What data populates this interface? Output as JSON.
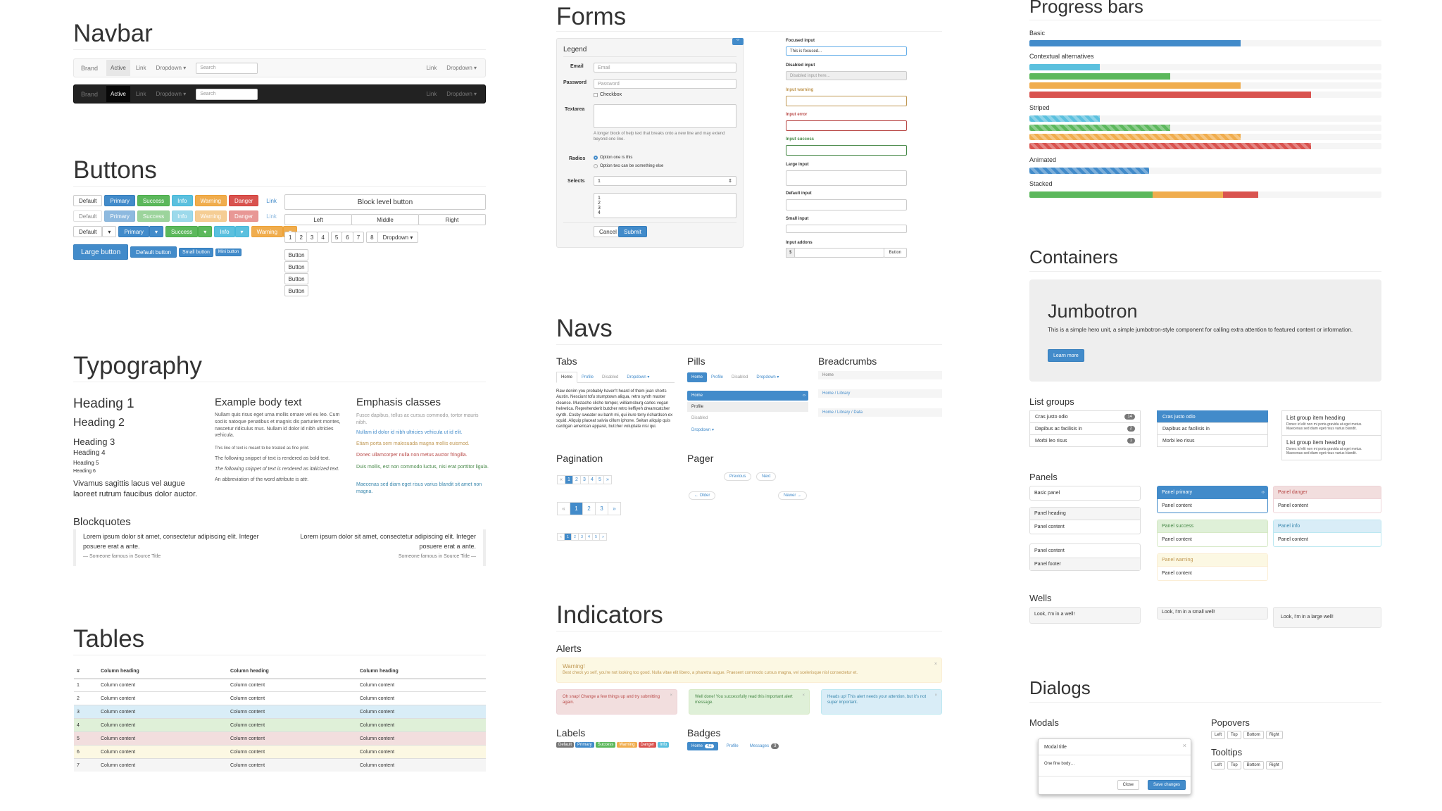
{
  "sections": {
    "navbar": "Navbar",
    "buttons": "Buttons",
    "typography": "Typography",
    "tables": "Tables",
    "forms": "Forms",
    "navs": "Navs",
    "indicators": "Indicators",
    "progress": "Progress bars",
    "containers": "Containers",
    "dialogs": "Dialogs"
  },
  "navbar": {
    "brand": "Brand",
    "active": "Active",
    "link": "Link",
    "dropdown": "Dropdown ▾",
    "search": "Search"
  },
  "buttons": {
    "row1": [
      "Default",
      "Primary",
      "Success",
      "Info",
      "Warning",
      "Danger",
      "Link"
    ],
    "large": "Large button",
    "default_btn": "Default button",
    "small": "Small button",
    "mini": "Mini button",
    "block": "Block level button",
    "group": [
      "Left",
      "Middle",
      "Right"
    ],
    "pages": [
      "1",
      "2",
      "3",
      "4",
      "5",
      "6",
      "7",
      "8"
    ],
    "dropdown": "Dropdown ▾",
    "vertical": [
      "Button",
      "Button",
      "Button",
      "Button"
    ]
  },
  "typography": {
    "h1": "Heading 1",
    "h2": "Heading 2",
    "h3": "Heading 3",
    "h4": "Heading 4",
    "h5": "Heading 5",
    "h6": "Heading 6",
    "lead": "Vivamus sagittis lacus vel augue laoreet rutrum faucibus dolor auctor.",
    "body_title": "Example body text",
    "body_p1": "Nullam quis risus eget urna mollis ornare vel eu leo. Cum sociis natoque penatibus et magnis dis parturient montes, nascetur ridiculus mus. Nullam id dolor id nibh ultricies vehicula.",
    "body_p2": "This line of text is meant to be treated as fine print.",
    "body_p3": "The following snippet of text is rendered as bold text.",
    "body_p4": "The following snippet of text is rendered as italicized text.",
    "body_p5": "An abbreviation of the word attribute is attr.",
    "emph_title": "Emphasis classes",
    "emph": [
      "Fusce dapibus, tellus ac cursus commodo, tortor mauris nibh.",
      "Nullam id dolor id nibh ultricies vehicula ut id elit.",
      "Etiam porta sem malesuada magna mollis euismod.",
      "Donec ullamcorper nulla non metus auctor fringilla.",
      "Duis mollis, est non commodo luctus, nisi erat porttitor ligula.",
      "Maecenas sed diam eget risus varius blandit sit amet non magna."
    ],
    "blockquotes": "Blockquotes",
    "bq_text": "Lorem ipsum dolor sit amet, consectetur adipiscing elit. Integer posuere erat a ante.",
    "bq_source": "— Someone famous in Source Title",
    "bq_source_r": "Someone famous in Source Title —"
  },
  "table": {
    "headers": [
      "#",
      "Column heading",
      "Column heading",
      "Column heading"
    ],
    "rows": [
      [
        "1",
        "Column content",
        "Column content",
        "Column content"
      ],
      [
        "2",
        "Column content",
        "Column content",
        "Column content"
      ],
      [
        "3",
        "Column content",
        "Column content",
        "Column content"
      ],
      [
        "4",
        "Column content",
        "Column content",
        "Column content"
      ],
      [
        "5",
        "Column content",
        "Column content",
        "Column content"
      ],
      [
        "6",
        "Column content",
        "Column content",
        "Column content"
      ],
      [
        "7",
        "Column content",
        "Column content",
        "Column content"
      ]
    ]
  },
  "forms": {
    "legend": "Legend",
    "email": "Email",
    "email_ph": "Email",
    "password": "Password",
    "password_ph": "Password",
    "checkbox": "Checkbox",
    "textarea": "Textarea",
    "help": "A longer block of help text that breaks onto a new line and may extend beyond one line.",
    "radios": "Radios",
    "radio1": "Option one is this",
    "radio2": "Option two can be something else",
    "selects": "Selects",
    "select_val": "1",
    "multi": [
      "1",
      "2",
      "3",
      "4"
    ],
    "cancel": "Cancel",
    "submit": "Submit",
    "focused": "Focused input",
    "focused_val": "This is focused...",
    "disabled": "Disabled input",
    "disabled_val": "Disabled input here...",
    "warning": "Input warning",
    "error": "Input error",
    "success": "Input success",
    "large": "Large input",
    "default": "Default input",
    "small": "Small input",
    "addons": "Input addons",
    "addon_prefix": "$",
    "addon_btn": "Button"
  },
  "navs": {
    "tabs": "Tabs",
    "tab_items": [
      "Home",
      "Profile",
      "Disabled",
      "Dropdown ▾"
    ],
    "tab_text": "Raw denim you probably haven't heard of them jean shorts Austin. Nesciunt tofu stumptown aliqua, retro synth master cleanse. Mustache cliche tempor, williamsburg carles vegan helvetica. Reprehenderit butcher retro keffiyeh dreamcatcher synth. Cosby sweater eu banh mi, qui irure terry richardson ex squid. Aliquip placeat salvia cillum iphone. Seitan aliquip quis cardigan american apparel, butcher voluptate nisi qui.",
    "pills": "Pills",
    "pill_items": [
      "Home",
      "Profile",
      "Disabled",
      "Dropdown ▾"
    ],
    "stacked": [
      "Home",
      "Profile",
      "Disabled",
      "Dropdown ▾"
    ],
    "breadcrumbs": "Breadcrumbs",
    "bc1": "Home",
    "bc2": "Home  /  Library",
    "bc3": "Home  /  Library  /  Data",
    "pagination": "Pagination",
    "pages": [
      "«",
      "1",
      "2",
      "3",
      "4",
      "5",
      "»"
    ],
    "pager": "Pager",
    "previous": "Previous",
    "next": "Next",
    "older": "← Older",
    "newer": "Newer →"
  },
  "indicators": {
    "alerts": "Alerts",
    "warn_title": "Warning!",
    "warn_text": "Best check yo self, you're not looking too good. Nulla vitae elit libero, a pharetra augue. Praesent commodo cursus magna, vel scelerisque nisl consectetur et.",
    "danger": "Oh snap! Change a few things up and try submitting again.",
    "success": "Well done! You successfully read this important alert message.",
    "info": "Heads up! This alert needs your attention, but it's not super important.",
    "labels": "Labels",
    "label_items": [
      "Default",
      "Primary",
      "Success",
      "Warning",
      "Danger",
      "Info"
    ],
    "badges": "Badges",
    "badge_home": "Home",
    "badge_home_n": "42",
    "badge_profile": "Profile",
    "badge_msg": "Messages",
    "badge_msg_n": "3"
  },
  "progress": {
    "basic": "Basic",
    "contextual": "Contextual alternatives",
    "striped": "Striped",
    "animated": "Animated",
    "stacked": "Stacked",
    "basic_pct": 60,
    "ctx": [
      20,
      40,
      60,
      80
    ],
    "stacked_pct": [
      35,
      20,
      10
    ]
  },
  "containers": {
    "jumbotron": "Jumbotron",
    "jumbo_text": "This is a simple hero unit, a simple jumbotron-style component for calling extra attention to featured content or information.",
    "learn": "Learn more",
    "list_groups": "List groups",
    "lg_items": [
      "Cras justo odio",
      "Dapibus ac facilisis in",
      "Morbi leo risus"
    ],
    "lg_badges": [
      "14",
      "2",
      "1"
    ],
    "lg_heading": "List group item heading",
    "lg_text": "Donec id elit non mi porta gravida at eget metus. Maecenas sed diam eget risus varius blandit.",
    "panels": "Panels",
    "basic_panel": "Basic panel",
    "panel_heading": "Panel heading",
    "panel_content": "Panel content",
    "panel_footer": "Panel footer",
    "p_primary": "Panel primary",
    "p_success": "Panel success",
    "p_warning": "Panel warning",
    "p_danger": "Panel danger",
    "p_info": "Panel info",
    "wells": "Wells",
    "well1": "Look, I'm in a well!",
    "well2": "Look, I'm in a small well!",
    "well3": "Look, I'm in a large well!"
  },
  "dialogs": {
    "modals": "Modals",
    "modal_title": "Modal title",
    "modal_body": "One fine body…",
    "close": "Close",
    "save": "Save changes",
    "popovers": "Popovers",
    "tooltips": "Tooltips",
    "dirs": [
      "Left",
      "Top",
      "Bottom",
      "Right"
    ]
  }
}
